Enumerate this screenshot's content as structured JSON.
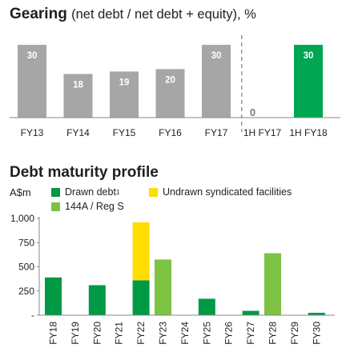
{
  "colors": {
    "grey_bar": "#a6a6a6",
    "green_bar": "#00a651",
    "drawn_debt": "#009944",
    "undrawn": "#ffdd00",
    "reg_s": "#7dc242",
    "axis": "#888888"
  },
  "chart_data": [
    {
      "type": "bar",
      "title": "Gearing",
      "subtitle": "(net debt / net debt + equity), %",
      "categories": [
        "FY13",
        "FY14",
        "FY15",
        "FY16",
        "FY17",
        "1H FY17",
        "1H FY18"
      ],
      "values": [
        30,
        18,
        19,
        20,
        30,
        0,
        30
      ],
      "value_labels": [
        "30",
        "18",
        "19",
        "20",
        "30",
        "0",
        "30"
      ],
      "highlight_index": 6,
      "separator_after_index": 4,
      "ylim": [
        0,
        32
      ]
    },
    {
      "type": "bar",
      "stacked": true,
      "title": "Debt maturity profile",
      "ylabel": "A$m",
      "categories": [
        "FY18",
        "FY19",
        "FY20",
        "FY21",
        "FY22",
        "FY23",
        "FY24",
        "FY25",
        "FY26",
        "FY27",
        "FY28",
        "FY29",
        "FY30"
      ],
      "series": [
        {
          "name": "Drawn debt",
          "name_sup": "1",
          "color_key": "drawn_debt",
          "values": [
            390,
            0,
            310,
            0,
            360,
            0,
            0,
            170,
            0,
            45,
            0,
            0,
            25
          ]
        },
        {
          "name": "Undrawn syndicated facilities",
          "color_key": "undrawn",
          "values": [
            0,
            0,
            0,
            0,
            600,
            0,
            0,
            0,
            0,
            0,
            0,
            0,
            0
          ]
        },
        {
          "name": "144A / Reg S",
          "color_key": "reg_s",
          "values": [
            0,
            0,
            0,
            0,
            0,
            575,
            0,
            0,
            0,
            0,
            640,
            0,
            0
          ]
        }
      ],
      "yticks": [
        0,
        250,
        500,
        750,
        1000
      ],
      "ytick_labels": [
        "-",
        "250",
        "500",
        "750",
        "1,000"
      ],
      "ylim": [
        0,
        1000
      ],
      "legend_position": "top"
    }
  ]
}
